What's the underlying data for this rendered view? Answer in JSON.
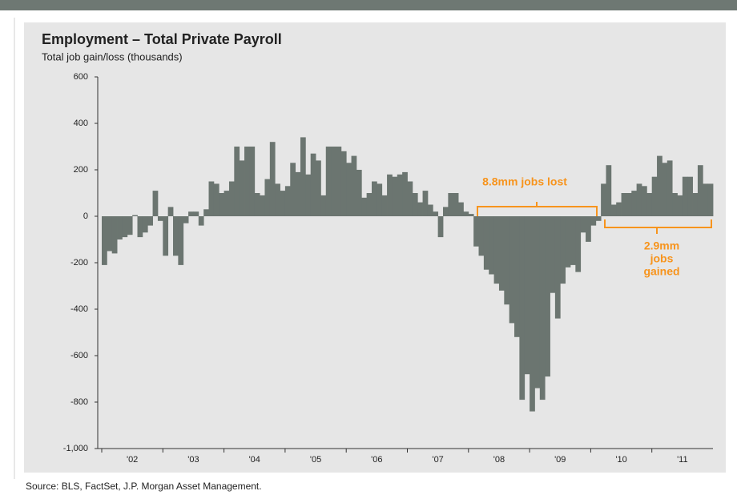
{
  "chart_data": {
    "type": "bar",
    "title": "Employment – Total Private Payroll",
    "subtitle": "Total job gain/loss (thousands)",
    "source": "Source: BLS, FactSet, J.P. Morgan Asset Management.",
    "annotations": [
      [
        "8.8mm jobs lost"
      ],
      [
        "2.9mm",
        "jobs",
        "gained"
      ]
    ],
    "color": "#6b7570",
    "annotation_color": "#f7941d",
    "categories": [
      null,
      null,
      null,
      null,
      null,
      "'02",
      null,
      null,
      null,
      null,
      null,
      null,
      null,
      null,
      null,
      null,
      null,
      "'03",
      null,
      null,
      null,
      null,
      null,
      null,
      null,
      null,
      null,
      null,
      null,
      "'04",
      null,
      null,
      null,
      null,
      null,
      null,
      null,
      null,
      null,
      null,
      null,
      "'05",
      null,
      null,
      null,
      null,
      null,
      null,
      null,
      null,
      null,
      null,
      null,
      "'06",
      null,
      null,
      null,
      null,
      null,
      null,
      null,
      null,
      null,
      null,
      null,
      "'07",
      null,
      null,
      null,
      null,
      null,
      null,
      null,
      null,
      null,
      null,
      null,
      "'08",
      null,
      null,
      null,
      null,
      null,
      null,
      null,
      null,
      null,
      null,
      null,
      "'09",
      null,
      null,
      null,
      null,
      null,
      null,
      null,
      null,
      null,
      null,
      null,
      "'10",
      null,
      null,
      null,
      null,
      null,
      null,
      null,
      null,
      null,
      null,
      null,
      "'11",
      null,
      null,
      null,
      null,
      null,
      null
    ],
    "values": [
      -210,
      -150,
      -160,
      -100,
      -90,
      -80,
      5,
      -90,
      -70,
      -40,
      110,
      -20,
      -170,
      40,
      -170,
      -210,
      -30,
      20,
      20,
      -40,
      30,
      150,
      140,
      100,
      110,
      150,
      300,
      240,
      300,
      300,
      100,
      90,
      160,
      320,
      140,
      110,
      130,
      230,
      190,
      340,
      180,
      270,
      240,
      90,
      300,
      300,
      300,
      280,
      230,
      260,
      200,
      80,
      100,
      150,
      140,
      90,
      180,
      170,
      180,
      190,
      150,
      100,
      60,
      110,
      50,
      20,
      -90,
      40,
      100,
      100,
      60,
      20,
      10,
      -130,
      -170,
      -230,
      -250,
      -290,
      -320,
      -380,
      -460,
      -520,
      -790,
      -680,
      -840,
      -740,
      -790,
      -690,
      -330,
      -440,
      -290,
      -220,
      -210,
      -240,
      -70,
      -110,
      -40,
      -20,
      140,
      220,
      50,
      60,
      100,
      100,
      110,
      140,
      130,
      100,
      170,
      260,
      230,
      240,
      100,
      90,
      170,
      170,
      100,
      220,
      140,
      140
    ],
    "ylim": [
      -1000,
      600
    ],
    "yticks": [
      600,
      400,
      200,
      0,
      -200,
      -400,
      -600,
      -800,
      {
        "value": -1000,
        "label": "-1,000"
      }
    ]
  }
}
